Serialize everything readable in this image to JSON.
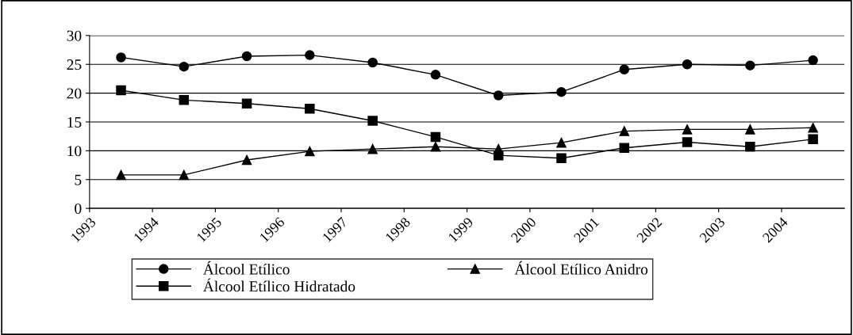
{
  "chart_data": {
    "type": "line",
    "x": [
      1993.5,
      1994.5,
      1995.5,
      1996.5,
      1997.5,
      1998.5,
      1999.5,
      2000.5,
      2001.5,
      2002.5,
      2003.5,
      2004.5
    ],
    "xlim": [
      1993,
      2005
    ],
    "xticks": [
      1993,
      1994,
      1995,
      1996,
      1997,
      1998,
      1999,
      2000,
      2001,
      2002,
      2003,
      2004
    ],
    "ylim": [
      0,
      30
    ],
    "yticks": [
      0,
      5,
      10,
      15,
      20,
      25,
      30
    ],
    "grid": "y",
    "legend": "bottom",
    "line_style": "solid",
    "series": [
      {
        "name": "Álcool Etílico",
        "color": "#000000",
        "marker": "circle",
        "values": [
          26.2,
          24.6,
          26.4,
          26.6,
          25.3,
          23.2,
          19.6,
          20.2,
          24.1,
          25.0,
          24.8,
          25.7
        ]
      },
      {
        "name": "Álcool Etílico Hidratado",
        "color": "#000000",
        "marker": "square",
        "values": [
          20.5,
          18.8,
          18.2,
          17.3,
          15.2,
          12.4,
          9.2,
          8.7,
          10.5,
          11.5,
          10.7,
          12.0
        ]
      },
      {
        "name": "Álcool Etílico Anidro",
        "color": "#000000",
        "marker": "triangle",
        "values": [
          5.8,
          5.8,
          8.4,
          9.9,
          10.3,
          10.7,
          10.3,
          11.4,
          13.4,
          13.7,
          13.7,
          14.0
        ]
      }
    ]
  }
}
